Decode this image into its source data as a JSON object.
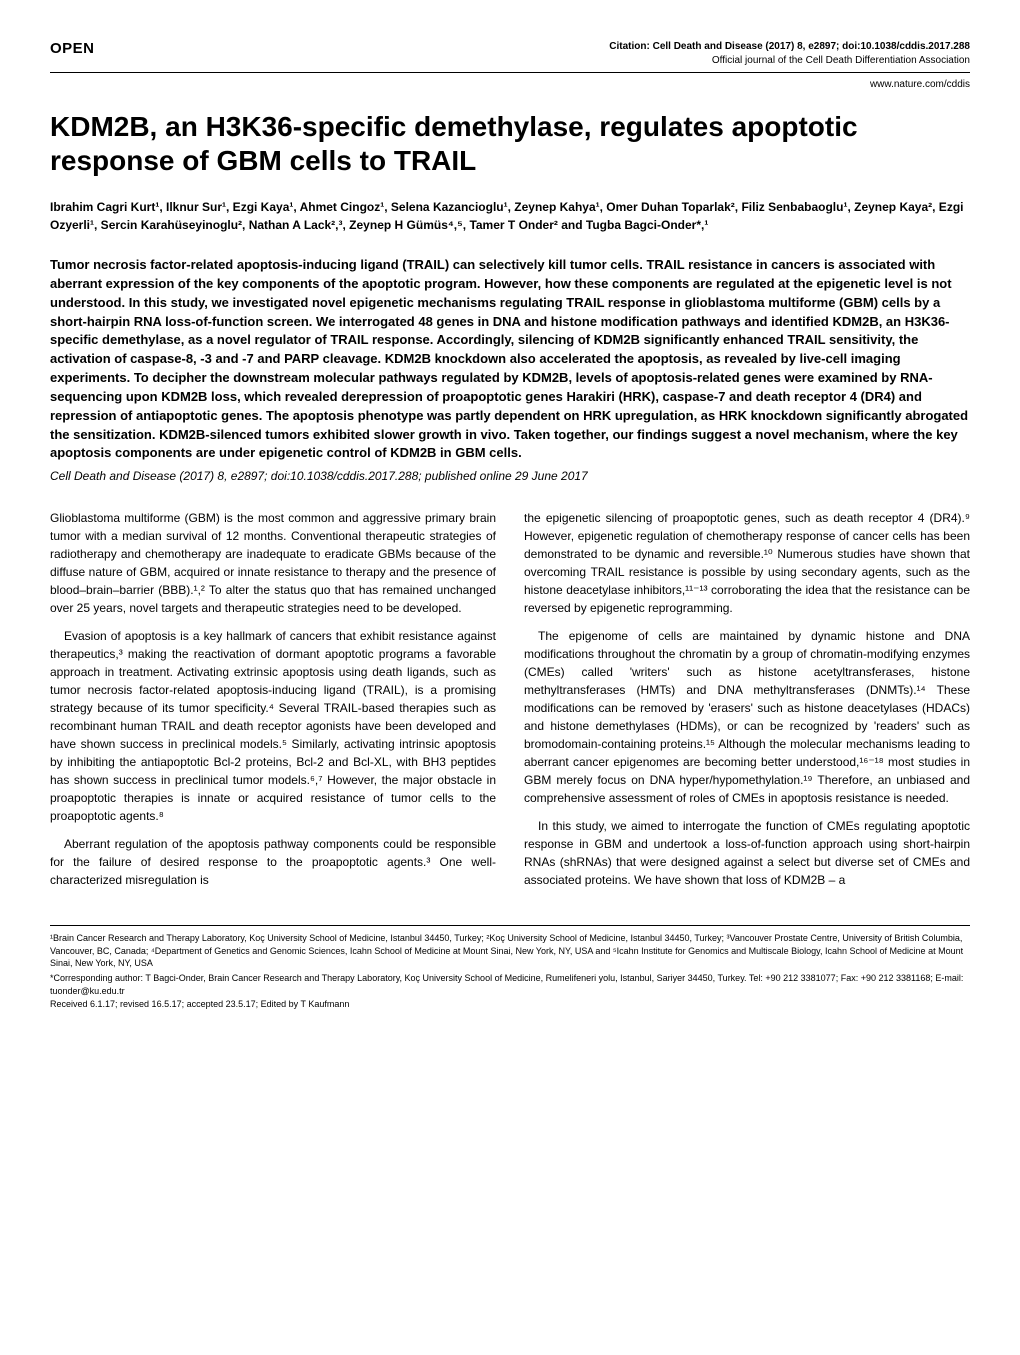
{
  "header": {
    "open": "OPEN",
    "citation": "Citation: Cell Death and Disease (2017) 8, e2897; doi:10.1038/cddis.2017.288",
    "journal": "Official journal of the Cell Death Differentiation Association",
    "url": "www.nature.com/cddis"
  },
  "title": "KDM2B, an H3K36-specific demethylase, regulates apoptotic response of GBM cells to TRAIL",
  "authors": "Ibrahim Cagri Kurt¹, Ilknur Sur¹, Ezgi Kaya¹, Ahmet Cingoz¹, Selena Kazancioglu¹, Zeynep Kahya¹, Omer Duhan Toparlak², Filiz Senbabaoglu¹, Zeynep Kaya², Ezgi Ozyerli¹, Sercin Karahüseyinoglu², Nathan A Lack²,³, Zeynep H Gümüs⁴,⁵, Tamer T Onder² and Tugba Bagci-Onder*,¹",
  "abstract": "Tumor necrosis factor-related apoptosis-inducing ligand (TRAIL) can selectively kill tumor cells. TRAIL resistance in cancers is associated with aberrant expression of the key components of the apoptotic program. However, how these components are regulated at the epigenetic level is not understood. In this study, we investigated novel epigenetic mechanisms regulating TRAIL response in glioblastoma multiforme (GBM) cells by a short-hairpin RNA loss-of-function screen. We interrogated 48 genes in DNA and histone modification pathways and identified KDM2B, an H3K36-specific demethylase, as a novel regulator of TRAIL response. Accordingly, silencing of KDM2B significantly enhanced TRAIL sensitivity, the activation of caspase-8, -3 and -7 and PARP cleavage. KDM2B knockdown also accelerated the apoptosis, as revealed by live-cell imaging experiments. To decipher the downstream molecular pathways regulated by KDM2B, levels of apoptosis-related genes were examined by RNA-sequencing upon KDM2B loss, which revealed derepression of proapoptotic genes Harakiri (HRK), caspase-7 and death receptor 4 (DR4) and repression of antiapoptotic genes. The apoptosis phenotype was partly dependent on HRK upregulation, as HRK knockdown significantly abrogated the sensitization. KDM2B-silenced tumors exhibited slower growth in vivo. Taken together, our findings suggest a novel mechanism, where the key apoptosis components are under epigenetic control of KDM2B in GBM cells.",
  "citeLine": "Cell Death and Disease (2017) 8, e2897; doi:10.1038/cddis.2017.288; published online 29 June 2017",
  "col1": {
    "p1": "Glioblastoma multiforme (GBM) is the most common and aggressive primary brain tumor with a median survival of 12 months. Conventional therapeutic strategies of radiotherapy and chemotherapy are inadequate to eradicate GBMs because of the diffuse nature of GBM, acquired or innate resistance to therapy and the presence of blood–brain–barrier (BBB).¹,² To alter the status quo that has remained unchanged over 25 years, novel targets and therapeutic strategies need to be developed.",
    "p2": "Evasion of apoptosis is a key hallmark of cancers that exhibit resistance against therapeutics,³ making the reactivation of dormant apoptotic programs a favorable approach in treatment. Activating extrinsic apoptosis using death ligands, such as tumor necrosis factor-related apoptosis-inducing ligand (TRAIL), is a promising strategy because of its tumor specificity.⁴ Several TRAIL-based therapies such as recombinant human TRAIL and death receptor agonists have been developed and have shown success in preclinical models.⁵ Similarly, activating intrinsic apoptosis by inhibiting the antiapoptotic Bcl-2 proteins, Bcl-2 and Bcl-XL, with BH3 peptides has shown success in preclinical tumor models.⁶,⁷ However, the major obstacle in proapoptotic therapies is innate or acquired resistance of tumor cells to the proapoptotic agents.⁸",
    "p3": "Aberrant regulation of the apoptosis pathway components could be responsible for the failure of desired response to the proapoptotic agents.³ One well-characterized misregulation is"
  },
  "col2": {
    "p1": "the epigenetic silencing of proapoptotic genes, such as death receptor 4 (DR4).⁹ However, epigenetic regulation of chemotherapy response of cancer cells has been demonstrated to be dynamic and reversible.¹⁰ Numerous studies have shown that overcoming TRAIL resistance is possible by using secondary agents, such as the histone deacetylase inhibitors,¹¹⁻¹³ corroborating the idea that the resistance can be reversed by epigenetic reprogramming.",
    "p2": "The epigenome of cells are maintained by dynamic histone and DNA modifications throughout the chromatin by a group of chromatin-modifying enzymes (CMEs) called 'writers' such as histone acetyltransferases, histone methyltransferases (HMTs) and DNA methyltransferases (DNMTs).¹⁴ These modifications can be removed by 'erasers' such as histone deacetylases (HDACs) and histone demethylases (HDMs), or can be recognized by 'readers' such as bromodomain-containing proteins.¹⁵ Although the molecular mechanisms leading to aberrant cancer epigenomes are becoming better understood,¹⁶⁻¹⁸ most studies in GBM merely focus on DNA hyper/hypomethylation.¹⁹ Therefore, an unbiased and comprehensive assessment of roles of CMEs in apoptosis resistance is needed.",
    "p3": "In this study, we aimed to interrogate the function of CMEs regulating apoptotic response in GBM and undertook a loss-of-function approach using short-hairpin RNAs (shRNAs) that were designed against a select but diverse set of CMEs and associated proteins. We have shown that loss of KDM2B – a"
  },
  "footer": {
    "affiliations": "¹Brain Cancer Research and Therapy Laboratory, Koç University School of Medicine, Istanbul 34450, Turkey; ²Koç University School of Medicine, Istanbul 34450, Turkey; ³Vancouver Prostate Centre, University of British Columbia, Vancouver, BC, Canada; ⁴Department of Genetics and Genomic Sciences, Icahn School of Medicine at Mount Sinai, New York, NY, USA and ⁵Icahn Institute for Genomics and Multiscale Biology, Icahn School of Medicine at Mount Sinai, New York, NY, USA",
    "corresp": "*Corresponding author: T Bagci-Onder, Brain Cancer Research and Therapy Laboratory, Koç University School of Medicine, Rumelifeneri yolu, Istanbul, Sariyer 34450, Turkey. Tel: +90 212 3381077; Fax: +90 212 3381168; E-mail: tuonder@ku.edu.tr",
    "received": "Received 6.1.17; revised 16.5.17; accepted 23.5.17; Edited by T Kaufmann"
  }
}
